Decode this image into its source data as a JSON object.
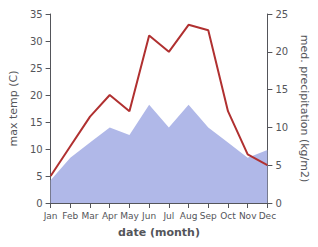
{
  "chart_data": {
    "type": "line",
    "xlabel": "date (month)",
    "ylabel": "max temp (C)",
    "y2label": "med. precipitation (kg/m2)",
    "categories": [
      "Jan",
      "Feb",
      "Mar",
      "Apr",
      "May",
      "Jun",
      "Jul",
      "Aug",
      "Sep",
      "Oct",
      "Nov",
      "Dec"
    ],
    "series": [
      {
        "type": "area",
        "axis": "y2",
        "color": "#b0b8e8",
        "values": [
          3,
          6,
          8,
          10,
          9,
          13,
          10,
          13,
          10,
          8,
          6,
          7
        ]
      },
      {
        "type": "line",
        "color": "#b03030",
        "values": [
          5,
          10.5,
          16,
          20,
          17,
          31,
          28,
          33,
          32,
          17,
          9,
          7
        ]
      }
    ],
    "ylim": [
      0,
      35
    ],
    "yticks": [
      0,
      5,
      10,
      15,
      20,
      25,
      30,
      35
    ],
    "y2lim": [
      0,
      25
    ],
    "y2ticks": [
      0,
      5,
      10,
      15,
      20,
      25
    ],
    "grid": false
  }
}
